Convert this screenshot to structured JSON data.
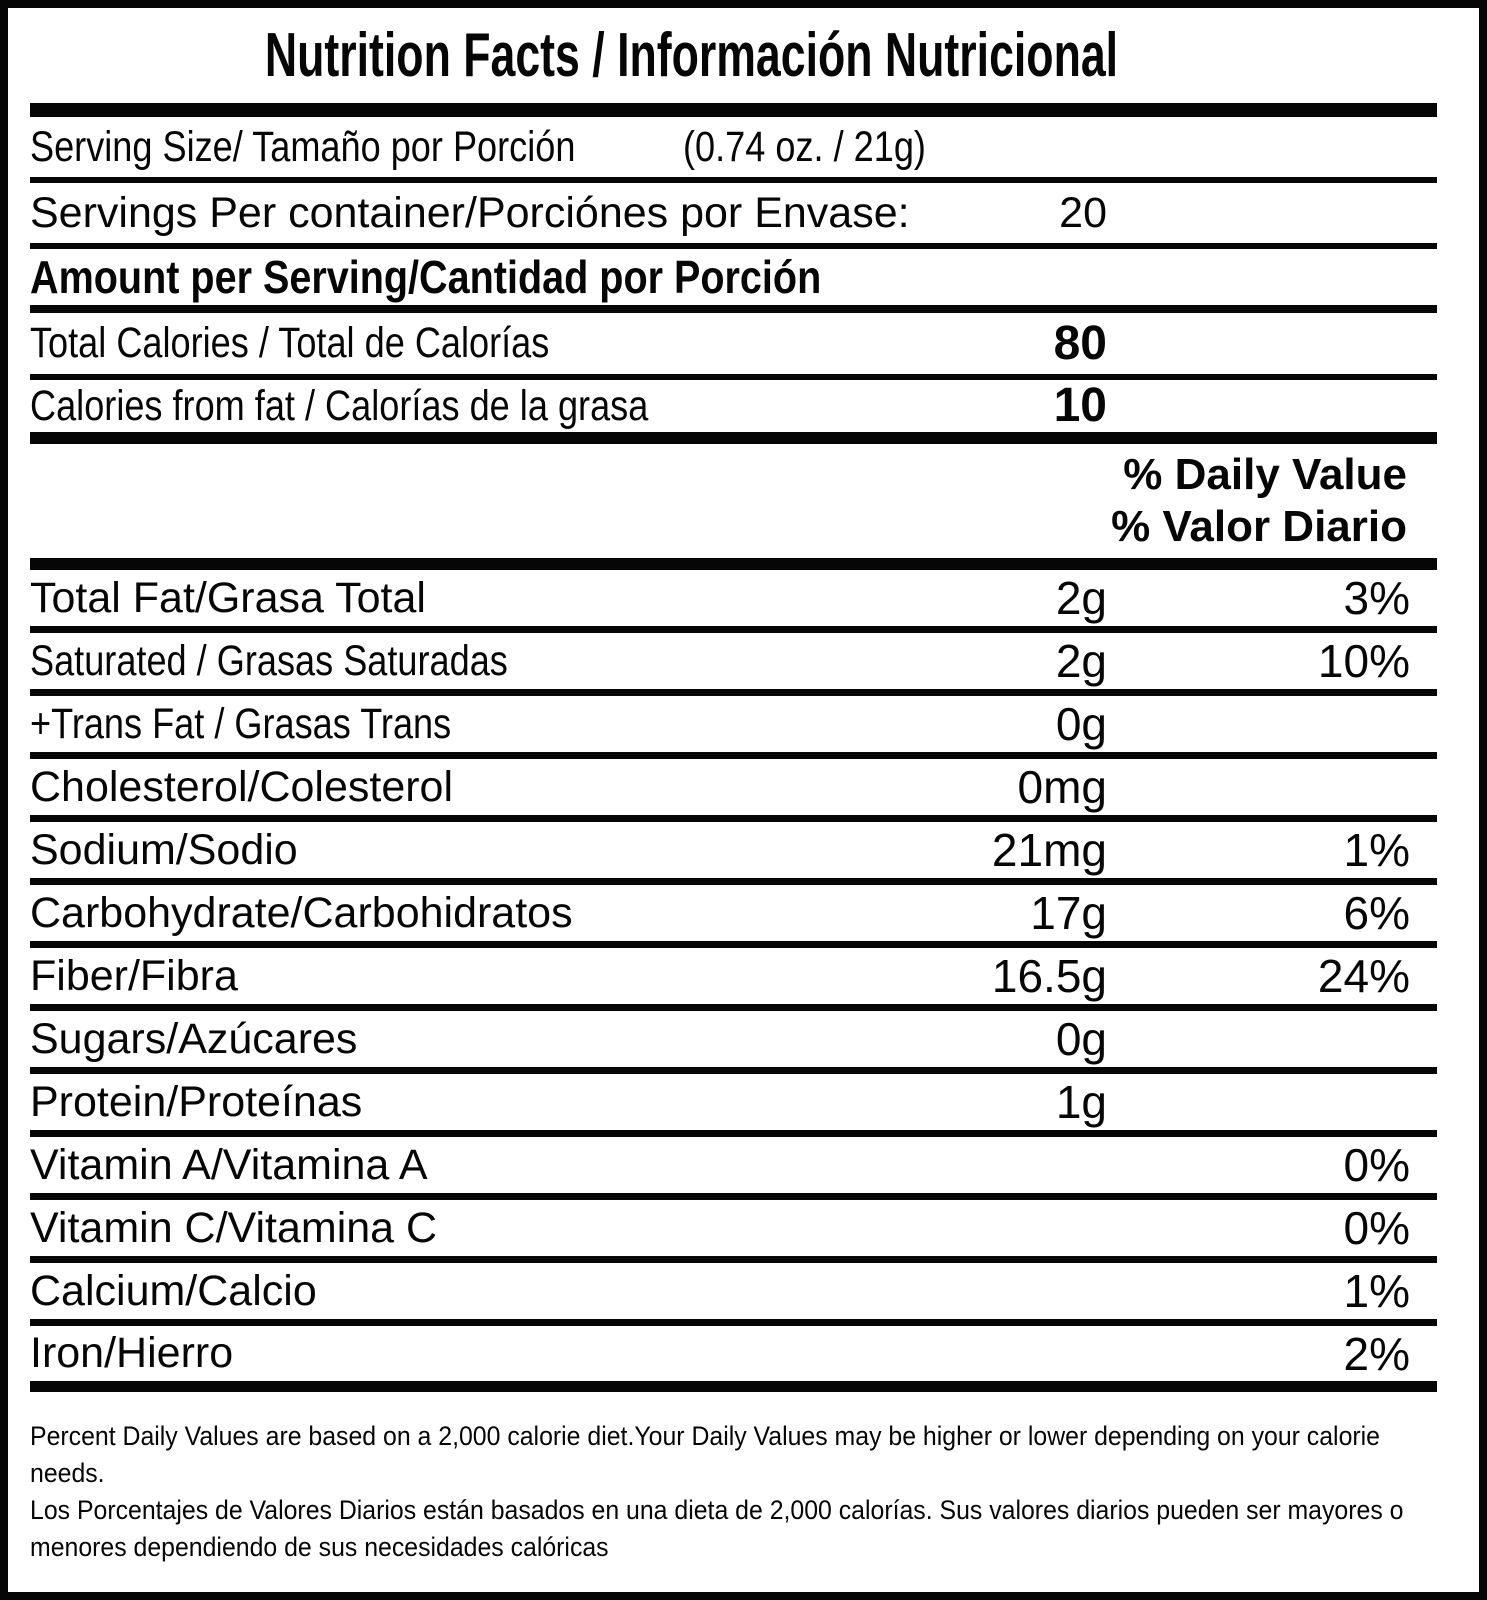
{
  "colors": {
    "ink": "#060606",
    "paper": "#ffffff"
  },
  "title": "Nutrition Facts / Información Nutricional",
  "serving_info": {
    "size_label": "Serving Size/ Tamaño por Porción",
    "size_value": "(0.74 oz. / 21g)",
    "per_container_label": "Servings Per container/Porciónes por Envase:",
    "per_container_value": "20"
  },
  "amount_per_serving_header": "Amount per Serving/Cantidad por Porción",
  "calorie_rows": [
    {
      "label": "Total Calories / Total de Calorías",
      "value": "80"
    },
    {
      "label": "Calories from fat / Calorías de la grasa",
      "value": "10"
    }
  ],
  "daily_value_header": {
    "english": "% Daily Value",
    "spanish": "% Valor Diario"
  },
  "nutrients": [
    {
      "label": "Total Fat/Grasa Total",
      "amount": "2g",
      "dv": "3%"
    },
    {
      "label": "Saturated / Grasas Saturadas",
      "amount": "2g",
      "dv": "10%"
    },
    {
      "label": "+Trans Fat / Grasas Trans",
      "amount": "0g",
      "dv": ""
    },
    {
      "label": "Cholesterol/Colesterol",
      "amount": "0mg",
      "dv": ""
    },
    {
      "label": "Sodium/Sodio",
      "amount": "21mg",
      "dv": "1%"
    },
    {
      "label": "Carbohydrate/Carbohidratos",
      "amount": "17g",
      "dv": "6%"
    },
    {
      "label": "Fiber/Fibra",
      "amount": "16.5g",
      "dv": "24%"
    },
    {
      "label": "Sugars/Azúcares",
      "amount": "0g",
      "dv": ""
    },
    {
      "label": "Protein/Proteínas",
      "amount": "1g",
      "dv": ""
    },
    {
      "label": "Vitamin A/Vitamina A",
      "amount": "",
      "dv": "0%"
    },
    {
      "label": "Vitamin C/Vitamina C",
      "amount": "",
      "dv": "0%"
    },
    {
      "label": "Calcium/Calcio",
      "amount": "",
      "dv": "1%"
    },
    {
      "label": "Iron/Hierro",
      "amount": "",
      "dv": "2%"
    }
  ],
  "footnotes": {
    "english": "Percent Daily Values are based on a 2,000 calorie diet.Your Daily Values may be higher or lower depending on your calorie needs.",
    "spanish": "Los Porcentajes de Valores Diarios están basados en una dieta de 2,000 calorías. Sus valores diarios pueden ser mayores o menores dependiendo de sus necesidades calóricas"
  }
}
